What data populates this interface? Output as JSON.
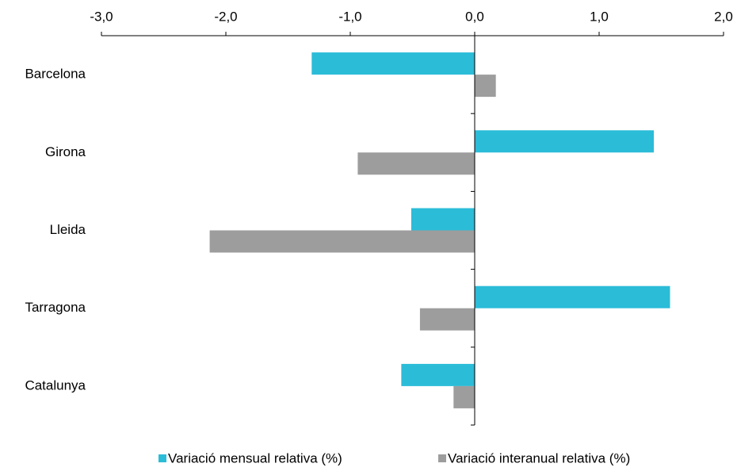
{
  "chart_data": {
    "type": "bar",
    "orientation": "horizontal",
    "categories": [
      "Barcelona",
      "Girona",
      "Lleida",
      "Tarragona",
      "Catalunya"
    ],
    "series": [
      {
        "name": "Variació mensual relativa (%)",
        "color": "#2bbcd8",
        "values": [
          -1.31,
          1.44,
          -0.51,
          1.57,
          -0.59
        ]
      },
      {
        "name": "Variació interanual relativa (%)",
        "color": "#9d9d9d",
        "values": [
          0.17,
          -0.94,
          -2.13,
          -0.44,
          -0.17
        ]
      }
    ],
    "xlim": [
      -3,
      2
    ],
    "xticks": [
      {
        "value": -3,
        "label": "-3,0"
      },
      {
        "value": -2,
        "label": "-2,0"
      },
      {
        "value": -1,
        "label": "-1,0"
      },
      {
        "value": 0,
        "label": "0,0"
      },
      {
        "value": 1,
        "label": "1,0"
      },
      {
        "value": 2,
        "label": "2,0"
      }
    ],
    "legend": "bottom"
  }
}
